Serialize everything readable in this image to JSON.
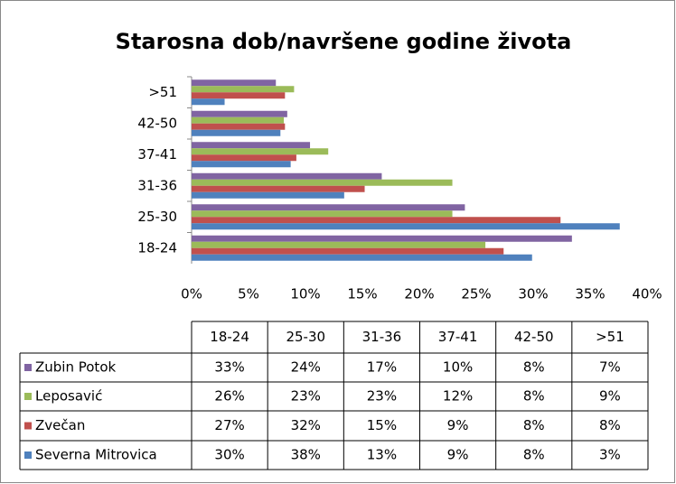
{
  "chart_data": {
    "type": "barh",
    "title": "Starosna dob/navršene godine života",
    "categories": [
      "18-24",
      "25-30",
      "31-36",
      "37-41",
      "42-50",
      ">51"
    ],
    "series": [
      {
        "name": "Zubin Potok",
        "color": "#8064a2",
        "values": [
          33.4,
          24.0,
          16.7,
          10.4,
          8.4,
          7.4
        ],
        "value_labels": [
          "33%",
          "24%",
          "17%",
          "10%",
          "8%",
          "7%"
        ]
      },
      {
        "name": "Leposavić",
        "color": "#9bbb59",
        "values": [
          25.8,
          22.9,
          22.9,
          12.0,
          8.1,
          9.0
        ],
        "value_labels": [
          "26%",
          "23%",
          "23%",
          "12%",
          "8%",
          "9%"
        ]
      },
      {
        "name": "Zvečan",
        "color": "#c0504d",
        "values": [
          27.4,
          32.4,
          15.2,
          9.2,
          8.2,
          8.2
        ],
        "value_labels": [
          "27%",
          "32%",
          "15%",
          "9%",
          "8%",
          "8%"
        ]
      },
      {
        "name": "Severna Mitrovica",
        "color": "#4f81bd",
        "values": [
          29.9,
          37.6,
          13.4,
          8.7,
          7.8,
          2.9
        ],
        "value_labels": [
          "30%",
          "38%",
          "13%",
          "9%",
          "8%",
          "3%"
        ]
      }
    ],
    "xlim": [
      0,
      40
    ],
    "xticks": [
      {
        "value": 0,
        "label": "0%"
      },
      {
        "value": 5,
        "label": "5%"
      },
      {
        "value": 10,
        "label": "10%"
      },
      {
        "value": 15,
        "label": "15%"
      },
      {
        "value": 20,
        "label": "20%"
      },
      {
        "value": 25,
        "label": "25%"
      },
      {
        "value": 30,
        "label": "30%"
      },
      {
        "value": 35,
        "label": "35%"
      },
      {
        "value": 40,
        "label": "40%"
      }
    ],
    "grid": false
  }
}
